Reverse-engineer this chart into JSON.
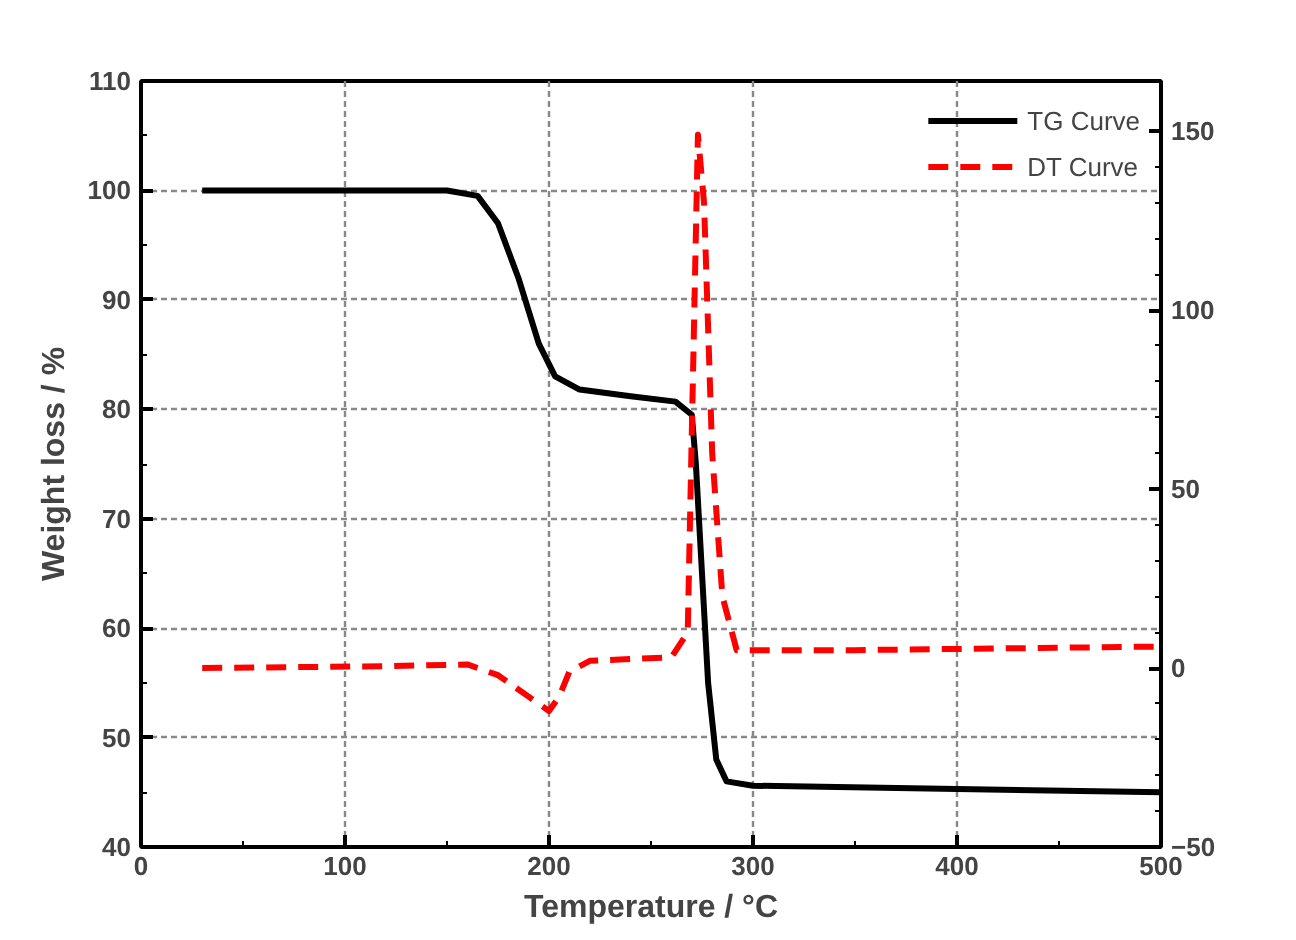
{
  "chart_data": {
    "type": "line",
    "xlabel": "Temperature / °C",
    "ylabel": "Weight loss / %",
    "xlim": [
      0,
      500
    ],
    "xticks": [
      0,
      100,
      200,
      300,
      400,
      500
    ],
    "ylim": [
      40,
      110
    ],
    "yticks": [
      40,
      50,
      60,
      70,
      80,
      90,
      100,
      110
    ],
    "y2lim": [
      -50,
      164
    ],
    "y2ticks": [
      -50,
      0,
      50,
      100,
      150
    ],
    "grid": true,
    "legend": "top right",
    "series": [
      {
        "name": "TG Curve",
        "color": "#000000",
        "line_style": "solid",
        "x": [
          30,
          150,
          165,
          175,
          185,
          195,
          203,
          215,
          240,
          262,
          270,
          272,
          275,
          278,
          282,
          287,
          300,
          400,
          500
        ],
        "values": [
          100,
          100,
          99.5,
          97,
          92,
          86,
          83,
          81.8,
          81.2,
          80.7,
          79.5,
          75,
          65,
          55,
          48,
          46,
          45.6,
          45.3,
          45.0
        ]
      },
      {
        "name": "DT Curve",
        "color": "#ff0000",
        "line_style": "dashed",
        "axis": "y2",
        "x": [
          30,
          120,
          160,
          175,
          190,
          200,
          205,
          210,
          220,
          260,
          268,
          273,
          276,
          280,
          285,
          292,
          350,
          500
        ],
        "values": [
          0,
          0.5,
          1,
          -2,
          -8,
          -12,
          -8,
          -1,
          2,
          3,
          10,
          149,
          130,
          60,
          20,
          5,
          5,
          6
        ]
      }
    ]
  }
}
